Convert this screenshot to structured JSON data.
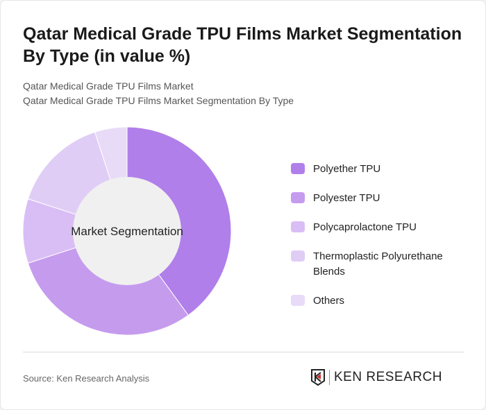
{
  "title": "Qatar Medical Grade TPU Films Market Segmentation By Type (in value %)",
  "subtitle1": "Qatar Medical Grade TPU Films Market",
  "subtitle2": "Qatar Medical Grade TPU Films Market Segmentation By Type",
  "source": "Source: Ken Research Analysis",
  "logo_text": "KEN RESEARCH",
  "chart_data": {
    "type": "pie",
    "donut": true,
    "center_label": "Market Segmentation",
    "categories": [
      "Polyether TPU",
      "Polyester TPU",
      "Polycaprolactone TPU",
      "Thermoplastic Polyurethane Blends",
      "Others"
    ],
    "values": [
      40,
      30,
      10,
      15,
      5
    ],
    "colors": [
      "#b07fea",
      "#c59bee",
      "#d9bef5",
      "#e0cdf6",
      "#e8dbf8"
    ],
    "legend_position": "right"
  }
}
